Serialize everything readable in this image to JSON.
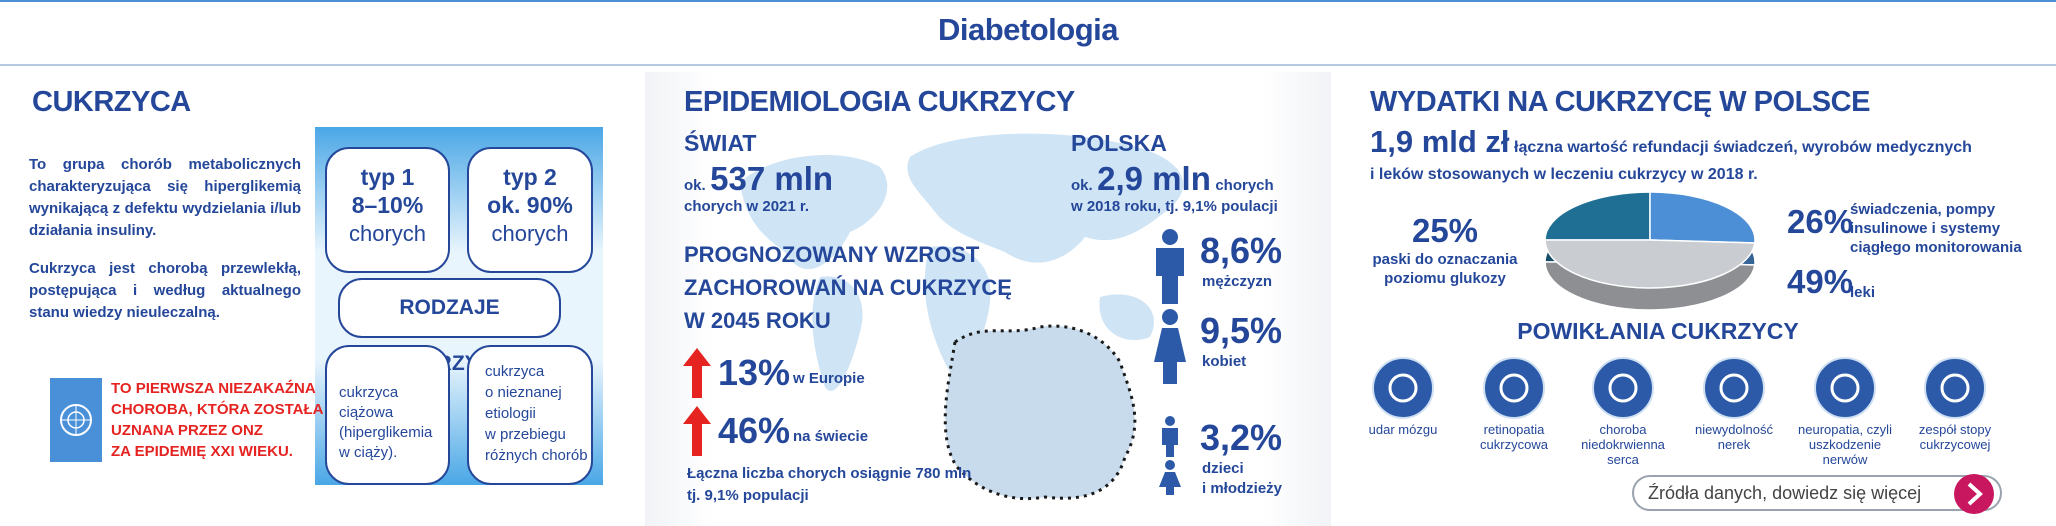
{
  "header": {
    "title": "Diabetologia"
  },
  "diabetes": {
    "heading": "CUKRZYCA",
    "paragraphs": [
      "To grupa chorób metabolicznych charakteryzująca się hiperglikemią wynikającą z defektu wydzielania i/lub działania insuliny.",
      "Cukrzyca jest chorobą przewlekłą, postępująca i według aktualnego stanu wiedzy nieuleczalną."
    ],
    "type1": [
      "typ 1",
      "8–10%",
      "chorych"
    ],
    "type2": [
      "typ 2",
      "ok. 90%",
      "chorych"
    ],
    "kinds": "RODZAJE CUKRZYCY",
    "gestational": [
      "cukrzyca ciążowa",
      "(hiperglikemia",
      "w ciąży)."
    ],
    "other": [
      "cukrzyca",
      "o nieznanej",
      "etiologii",
      "w przebiegu",
      "różnych chorób"
    ],
    "un_note": [
      "TO PIERWSZA NIEZAKAŹNA",
      "CHOROBA, KTÓRA ZOSTAŁA",
      "UZNANA PRZEZ ONZ",
      "ZA EPIDEMIĘ XXI WIEKU."
    ]
  },
  "epidemiology": {
    "heading": "EPIDEMIOLOGIA CUKRZYCY",
    "world": {
      "label": "ŚWIAT",
      "prefix": "ok.",
      "amount": "537 mln",
      "note": "chorych w 2021 r."
    },
    "forecast": [
      "PROGNOZOWANY WZROST",
      "ZACHOROWAŃ NA CUKRZYCĘ",
      "W 2045 ROKU"
    ],
    "growth": [
      {
        "value": "13%",
        "where": "w Europie"
      },
      {
        "value": "46%",
        "where": "na świecie"
      }
    ],
    "total": [
      "Łączna liczba chorych osiągnie 780 mln",
      "tj. 9,1% populacji"
    ],
    "poland": {
      "label": "POLSKA",
      "prefix": "ok.",
      "amount": "2,9 mln",
      "suffix": "chorych",
      "note": "w 2018 roku, tj. 9,1% poulacji"
    },
    "groups": [
      {
        "value": "8,6%",
        "label": [
          "mężczyzn"
        ]
      },
      {
        "value": "9,5%",
        "label": [
          "kobiet"
        ]
      },
      {
        "value": "3,2%",
        "label": [
          "dzieci",
          "i młodzieży"
        ]
      }
    ]
  },
  "expenses": {
    "heading": "WYDATKI NA CUKRZYCĘ W POLSCE",
    "amount": "1,9 mld zł",
    "description": [
      "łączna wartość refundacji świadczeń, wyrobów medycznych",
      "i leków stosowanych w leczeniu cukrzycy w 2018 r."
    ],
    "pie": [
      {
        "value": 25,
        "label": "25%",
        "text": [
          "paski do oznaczania",
          "poziomu glukozy"
        ],
        "color": "#1f6f95"
      },
      {
        "value": 26,
        "label": "26%",
        "text": [
          "świadczenia, pompy",
          "insulinowe i systemy",
          "ciągłego monitorowania"
        ],
        "color": "#4d8fd6"
      },
      {
        "value": 49,
        "label": "49%",
        "text": [
          "leki"
        ],
        "color": "#c9ccd1"
      }
    ],
    "complications_heading": "POWIKŁANIA CUKRZYCY",
    "complications": [
      [
        "udar mózgu"
      ],
      [
        "retinopatia",
        "cukrzycowa"
      ],
      [
        "choroba",
        "niedokrwienna",
        "serca"
      ],
      [
        "niewydolność",
        "nerek"
      ],
      [
        "neuropatia, czyli",
        "uszkodzenie",
        "nerwów"
      ],
      [
        "zespół stopy",
        "cukrzycowej"
      ]
    ],
    "sources": "Źródła danych, dowiedz się więcej"
  }
}
